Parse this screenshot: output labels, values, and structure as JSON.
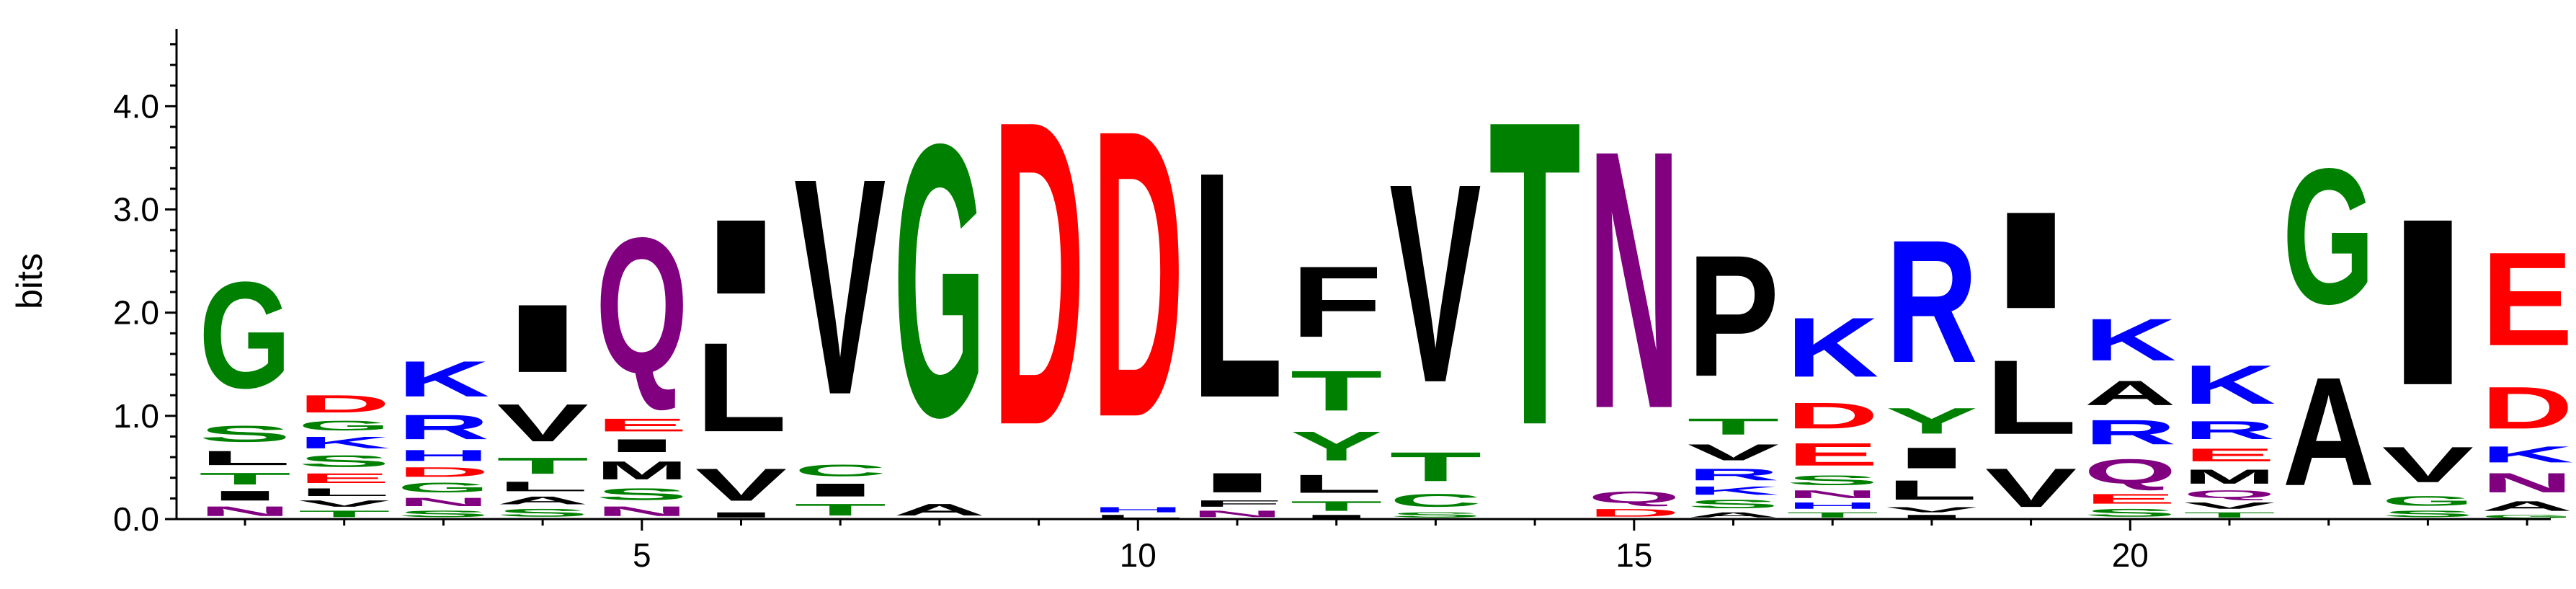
{
  "chart_data": {
    "type": "sequence-logo",
    "ylabel": "bits",
    "ylim": [
      0,
      4.75
    ],
    "y_ticks": [
      "0.0",
      "1.0",
      "2.0",
      "3.0",
      "4.0"
    ],
    "y_tick_values": [
      0,
      1,
      2,
      3,
      4
    ],
    "x_tick_labels": [
      "5",
      "10",
      "15",
      "20"
    ],
    "x_tick_positions": [
      5,
      10,
      15,
      20
    ],
    "colors": {
      "G": "#008000",
      "S": "#008000",
      "T": "#008000",
      "Y": "#008000",
      "C": "#008000",
      "D": "#ff0000",
      "E": "#ff0000",
      "K": "#0000ff",
      "R": "#0000ff",
      "H": "#0000ff",
      "Q": "#800080",
      "N": "#800080",
      "A": "#000000",
      "V": "#000000",
      "L": "#000000",
      "I": "#000000",
      "P": "#000000",
      "F": "#000000",
      "M": "#000000",
      "W": "#000000"
    },
    "positions": [
      {
        "pos": 1,
        "letters": [
          [
            "N",
            0.15
          ],
          [
            "I",
            0.15
          ],
          [
            "T",
            0.18
          ],
          [
            "L",
            0.22
          ],
          [
            "S",
            0.25
          ],
          [
            "G",
            1.65
          ]
        ]
      },
      {
        "pos": 2,
        "letters": [
          [
            "T",
            0.1
          ],
          [
            "V",
            0.1
          ],
          [
            "L",
            0.12
          ],
          [
            "E",
            0.15
          ],
          [
            "S",
            0.18
          ],
          [
            "K",
            0.18
          ],
          [
            "G",
            0.15
          ],
          [
            "D",
            0.27
          ]
        ]
      },
      {
        "pos": 3,
        "letters": [
          [
            "S",
            0.1
          ],
          [
            "N",
            0.13
          ],
          [
            "G",
            0.15
          ],
          [
            "D",
            0.15
          ],
          [
            "H",
            0.17
          ],
          [
            "R",
            0.38
          ],
          [
            "K",
            0.55
          ]
        ]
      },
      {
        "pos": 4,
        "letters": [
          [
            "S",
            0.12
          ],
          [
            "A",
            0.12
          ],
          [
            "L",
            0.15
          ],
          [
            "T",
            0.25
          ],
          [
            "V",
            0.58
          ],
          [
            "I",
            1.05
          ]
        ]
      },
      {
        "pos": 5,
        "letters": [
          [
            "N",
            0.15
          ],
          [
            "S",
            0.18
          ],
          [
            "M",
            0.28
          ],
          [
            "I",
            0.2
          ],
          [
            "E",
            0.2
          ],
          [
            "Q",
            2.1
          ]
        ]
      },
      {
        "pos": 6,
        "letters": [
          [
            "I",
            0.08
          ],
          [
            "V",
            0.5
          ],
          [
            "L",
            1.38
          ],
          [
            "I",
            1.15
          ]
        ]
      },
      {
        "pos": 7,
        "letters": [
          [
            "T",
            0.18
          ],
          [
            "I",
            0.2
          ],
          [
            "C",
            0.18
          ],
          [
            "V",
            3.35
          ]
        ]
      },
      {
        "pos": 8,
        "letters": [
          [
            "A",
            0.18
          ],
          [
            "G",
            4.22
          ]
        ]
      },
      {
        "pos": 9,
        "letters": [
          [
            "D",
            4.72
          ]
        ]
      },
      {
        "pos": 10,
        "letters": [
          [
            "L",
            0.05
          ],
          [
            "H",
            0.08
          ],
          [
            "D",
            4.45
          ]
        ]
      },
      {
        "pos": 11,
        "letters": [
          [
            "N",
            0.1
          ],
          [
            "F",
            0.1
          ],
          [
            "I",
            0.3
          ],
          [
            "L",
            3.5
          ]
        ]
      },
      {
        "pos": 12,
        "letters": [
          [
            "I",
            0.05
          ],
          [
            "T",
            0.15
          ],
          [
            "L",
            0.28
          ],
          [
            "Y",
            0.45
          ],
          [
            "T",
            0.62
          ],
          [
            "F",
            1.1
          ]
        ]
      },
      {
        "pos": 13,
        "letters": [
          [
            "S",
            0.08
          ],
          [
            "C",
            0.2
          ],
          [
            "T",
            0.45
          ],
          [
            "V",
            3.08
          ]
        ]
      },
      {
        "pos": 14,
        "letters": [
          [
            "T",
            4.72
          ]
        ]
      },
      {
        "pos": 15,
        "letters": [
          [
            "D",
            0.12
          ],
          [
            "Q",
            0.18
          ],
          [
            "N",
            4.0
          ]
        ]
      },
      {
        "pos": 16,
        "letters": [
          [
            "A",
            0.08
          ],
          [
            "S",
            0.13
          ],
          [
            "K",
            0.13
          ],
          [
            "R",
            0.18
          ],
          [
            "V",
            0.25
          ],
          [
            "T",
            0.25
          ],
          [
            "P",
            1.88
          ]
        ]
      },
      {
        "pos": 17,
        "letters": [
          [
            "T",
            0.08
          ],
          [
            "H",
            0.1
          ],
          [
            "N",
            0.12
          ],
          [
            "S",
            0.15
          ],
          [
            "E",
            0.35
          ],
          [
            "D",
            0.4
          ],
          [
            "K",
            0.92
          ]
        ]
      },
      {
        "pos": 18,
        "letters": [
          [
            "I",
            0.05
          ],
          [
            "V",
            0.08
          ],
          [
            "L",
            0.3
          ],
          [
            "I",
            0.32
          ],
          [
            "Y",
            0.4
          ],
          [
            "R",
            1.9
          ]
        ]
      },
      {
        "pos": 19,
        "letters": [
          [
            "V",
            0.6
          ],
          [
            "L",
            1.15
          ],
          [
            "I",
            1.5
          ]
        ]
      },
      {
        "pos": 20,
        "letters": [
          [
            "S",
            0.12
          ],
          [
            "E",
            0.15
          ],
          [
            "Q",
            0.38
          ],
          [
            "R",
            0.38
          ],
          [
            "A",
            0.38
          ],
          [
            "K",
            0.65
          ]
        ]
      },
      {
        "pos": 21,
        "letters": [
          [
            "T",
            0.08
          ],
          [
            "V",
            0.1
          ],
          [
            "Q",
            0.12
          ],
          [
            "M",
            0.22
          ],
          [
            "E",
            0.2
          ],
          [
            "R",
            0.28
          ],
          [
            "K",
            0.6
          ]
        ]
      },
      {
        "pos": 22,
        "letters": [
          [
            "A",
            1.68
          ],
          [
            "G",
            2.1
          ]
        ]
      },
      {
        "pos": 23,
        "letters": [
          [
            "S",
            0.1
          ],
          [
            "G",
            0.15
          ],
          [
            "V",
            0.55
          ],
          [
            "I",
            2.58
          ]
        ]
      },
      {
        "pos": 24,
        "letters": [
          [
            "G",
            0.05
          ],
          [
            "A",
            0.15
          ],
          [
            "N",
            0.3
          ],
          [
            "K",
            0.25
          ],
          [
            "D",
            0.65
          ],
          [
            "E",
            1.45
          ]
        ]
      }
    ]
  }
}
